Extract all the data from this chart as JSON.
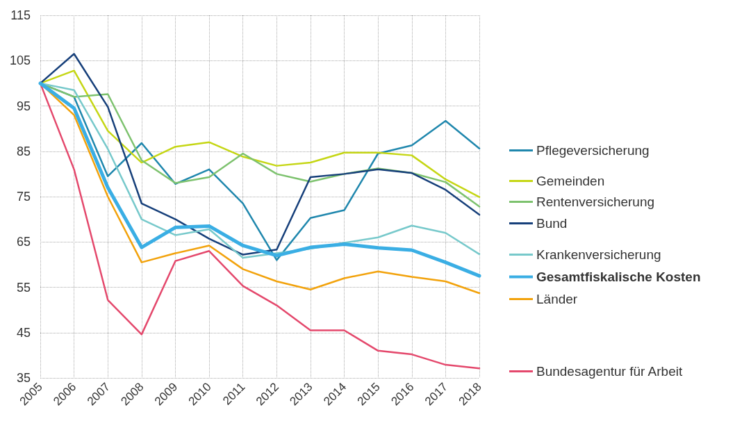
{
  "chart_data": {
    "type": "line",
    "categories": [
      "2005",
      "2006",
      "2007",
      "2008",
      "2009",
      "2010",
      "2011",
      "2012",
      "2013",
      "2014",
      "2015",
      "2016",
      "2017",
      "2018"
    ],
    "ylim": [
      35,
      115
    ],
    "yticks": [
      35,
      45,
      55,
      65,
      75,
      85,
      95,
      105,
      115
    ],
    "grid": true,
    "legend": "right",
    "marker": "none",
    "line_style": "solid",
    "series": [
      {
        "name": "Pflegeversicherung",
        "color": "#1f87ad",
        "values": [
          100,
          97,
          79.5,
          86.8,
          77.8,
          81,
          73.5,
          61,
          70.3,
          72,
          84.5,
          86.3,
          91.7,
          85.6
        ]
      },
      {
        "name": "Gemeinden",
        "color": "#c5d614",
        "values": [
          100,
          102.8,
          89.5,
          82.5,
          86,
          87,
          83.8,
          81.8,
          82.5,
          84.7,
          84.7,
          84.1,
          78.8,
          74.9
        ]
      },
      {
        "name": "Rentenversicherung",
        "color": "#7dc26e",
        "values": [
          100,
          97,
          97.6,
          83,
          78,
          79.3,
          84.5,
          80,
          78.3,
          80,
          81.2,
          80.2,
          78.2,
          72.8
        ]
      },
      {
        "name": "Bund",
        "color": "#163f7a",
        "values": [
          100,
          106.5,
          94.8,
          73.5,
          70,
          65.7,
          62.2,
          63.3,
          79.3,
          80,
          81,
          80.2,
          76.5,
          71
        ]
      },
      {
        "name": "Krankenversicherung",
        "color": "#77c9cb",
        "values": [
          100,
          98.5,
          85.5,
          70,
          66.5,
          67.8,
          61.5,
          62.5,
          63.5,
          64.8,
          66,
          68.6,
          67,
          62.3
        ]
      },
      {
        "name": "Gesamtfiskalische Kosten",
        "color": "#3aaee4",
        "values": [
          100,
          94.5,
          77,
          63.8,
          68.2,
          68.5,
          64.2,
          62,
          63.8,
          64.5,
          63.7,
          63.2,
          60.5,
          57.5
        ]
      },
      {
        "name": "Länder",
        "color": "#f2a20b",
        "values": [
          100,
          93,
          75,
          60.5,
          62.5,
          64.2,
          59,
          56.3,
          54.5,
          57,
          58.5,
          57.3,
          56.3,
          53.7
        ]
      },
      {
        "name": "Bundesagentur für Arbeit",
        "color": "#e4486c",
        "values": [
          100,
          81,
          52.2,
          44.6,
          60.8,
          63,
          55.3,
          51,
          45.5,
          45.5,
          41,
          40.2,
          37.9,
          37.1
        ]
      }
    ]
  }
}
